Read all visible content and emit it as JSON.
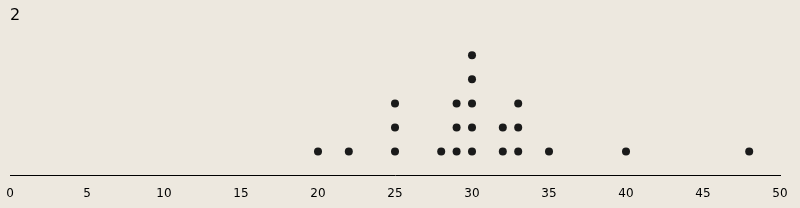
{
  "chart_data": {
    "type": "dot",
    "title": "2",
    "x": [
      20,
      22,
      25,
      28,
      29,
      30,
      32,
      33,
      35,
      40,
      48
    ],
    "values": [
      1,
      1,
      3,
      1,
      3,
      5,
      2,
      3,
      1,
      1,
      1
    ],
    "color": "#1a1a1a",
    "xlim": [
      0,
      50
    ],
    "xticks": [
      0,
      5,
      10,
      15,
      20,
      25,
      30,
      35,
      40,
      45,
      50
    ],
    "ylim": [
      0,
      6
    ],
    "tick_labels": "x",
    "grid": false,
    "marker": "circle"
  }
}
